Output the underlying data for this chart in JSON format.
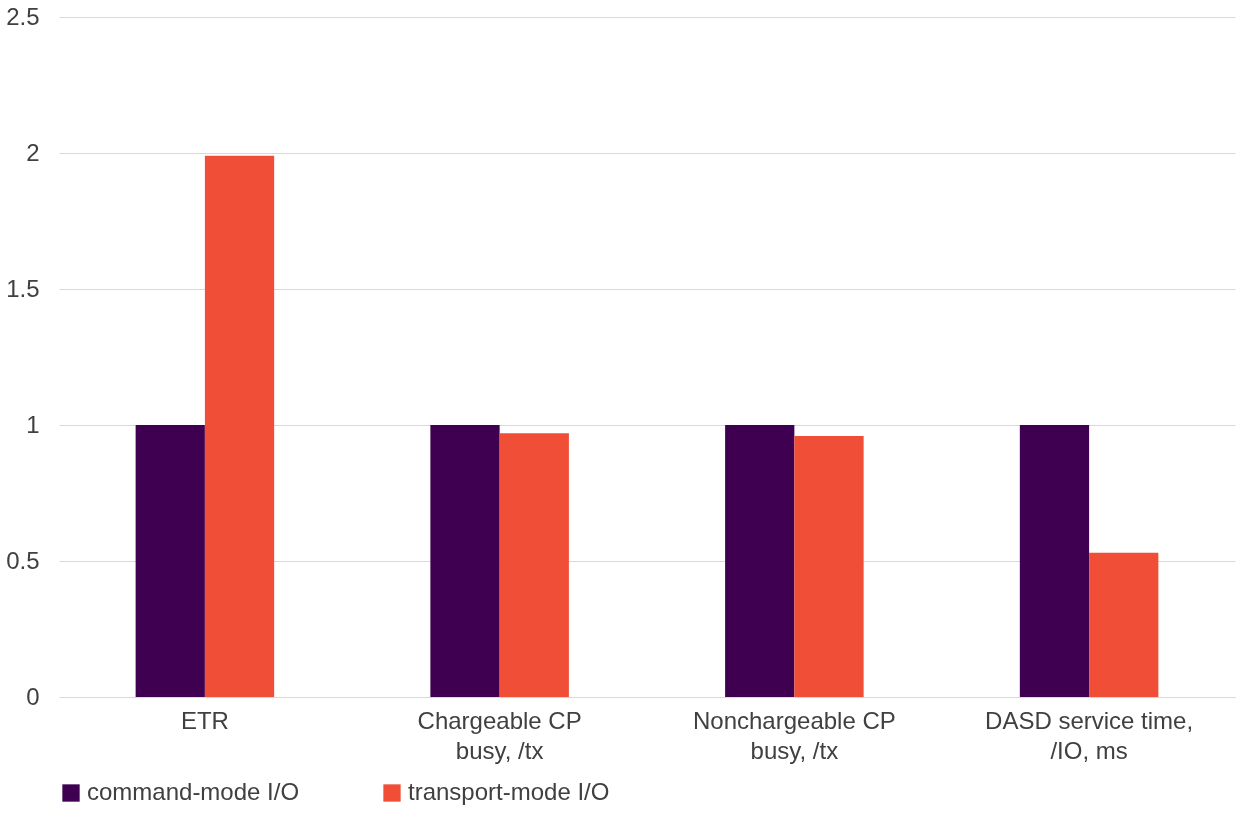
{
  "chart_data": {
    "type": "bar",
    "categories": [
      "ETR",
      "Chargeable CP\nbusy, /tx",
      "Nonchargeable CP\nbusy, /tx",
      "DASD service time,\n/IO, ms"
    ],
    "series": [
      {
        "name": "command-mode I/O",
        "color": "#3f0052",
        "values": [
          1,
          1,
          1,
          1
        ]
      },
      {
        "name": "transport-mode I/O",
        "color": "#f04e37",
        "values": [
          1.99,
          0.97,
          0.96,
          0.53
        ]
      }
    ],
    "ylim": [
      0,
      2.5
    ],
    "yticks": [
      0,
      0.5,
      1,
      1.5,
      2,
      2.5
    ],
    "grid": "y",
    "legend": "bottom"
  }
}
